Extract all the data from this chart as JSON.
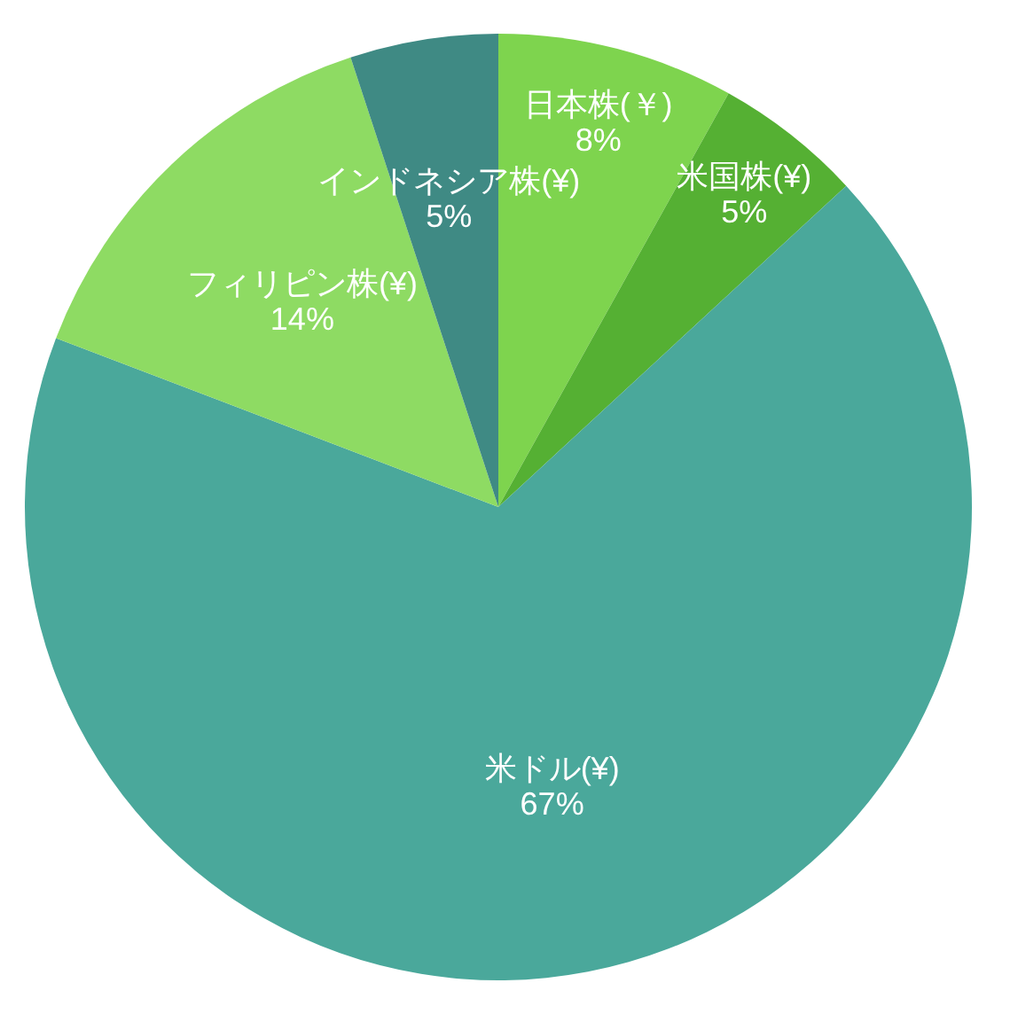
{
  "chart_data": {
    "type": "pie",
    "categories": [
      "日本株(￥)",
      "米国株(¥)",
      "米ドル(¥)",
      "フィリピン株(¥)",
      "インドネシア株(¥)"
    ],
    "values": [
      8,
      5,
      67,
      14,
      5
    ],
    "value_labels": [
      "8%",
      "5%",
      "67%",
      "14%",
      "5%"
    ],
    "colors": [
      "#7ed44e",
      "#55b033",
      "#4aa89b",
      "#8edb63",
      "#3f8a84"
    ]
  }
}
